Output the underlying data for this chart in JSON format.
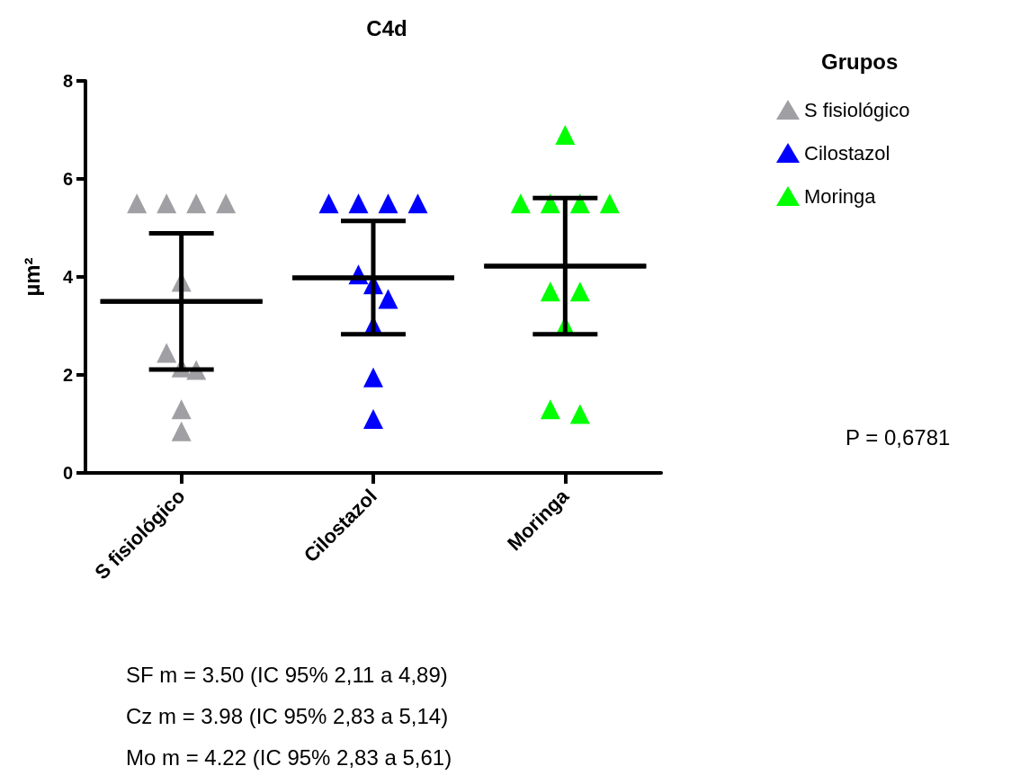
{
  "chart_data": {
    "type": "scatter",
    "title": "C4d",
    "ylabel": "µm²",
    "legend_title": "Grupos",
    "categories": [
      "S fisiológico",
      "Cilostazol",
      "Moringa"
    ],
    "series": [
      {
        "name": "S fisiológico",
        "color": "#a0a0a4",
        "x": [
          "S fisiológico",
          "S fisiológico",
          "S fisiológico",
          "S fisiológico",
          "S fisiológico",
          "S fisiológico",
          "S fisiológico",
          "S fisiológico",
          "S fisiológico",
          "S fisiológico"
        ],
        "values": [
          5.5,
          5.5,
          5.5,
          5.5,
          3.9,
          2.45,
          2.15,
          2.1,
          1.3,
          0.85
        ]
      },
      {
        "name": "Cilostazol",
        "color": "#0000ff",
        "x": [
          "Cilostazol",
          "Cilostazol",
          "Cilostazol",
          "Cilostazol",
          "Cilostazol",
          "Cilostazol",
          "Cilostazol",
          "Cilostazol",
          "Cilostazol",
          "Cilostazol"
        ],
        "values": [
          5.5,
          5.5,
          5.5,
          5.5,
          4.05,
          3.85,
          3.55,
          3.0,
          1.95,
          1.1
        ]
      },
      {
        "name": "Moringa",
        "color": "#00ff00",
        "x": [
          "Moringa",
          "Moringa",
          "Moringa",
          "Moringa",
          "Moringa",
          "Moringa",
          "Moringa",
          "Moringa",
          "Moringa",
          "Moringa"
        ],
        "values": [
          6.9,
          5.5,
          5.5,
          5.5,
          5.5,
          3.7,
          3.7,
          3.0,
          1.3,
          1.2
        ]
      },
      {
        "type": "box",
        "color": "#000000",
        "boxes": [
          {
            "low": 2.11,
            "q1": 3.5,
            "median": 3.5,
            "q3": 3.5,
            "high": 4.89
          },
          {
            "low": 2.83,
            "q1": 3.98,
            "median": 3.98,
            "q3": 3.98,
            "high": 5.14
          },
          {
            "low": 2.83,
            "q1": 4.22,
            "median": 4.22,
            "q3": 4.22,
            "high": 5.61
          }
        ]
      }
    ],
    "marker": "triangle",
    "ylim": [
      0,
      8
    ],
    "yticks": [
      0,
      2,
      4,
      6,
      8
    ],
    "legend": "top right",
    "annotations": [
      "P = 0,6781",
      "SF m = 3.50 (IC 95% 2,11 a 4,89)",
      "Cz m = 3.98 (IC 95% 2,83 a 5,14)",
      "Mo m = 4.22 (IC 95% 2,83 a 5,61)"
    ]
  }
}
